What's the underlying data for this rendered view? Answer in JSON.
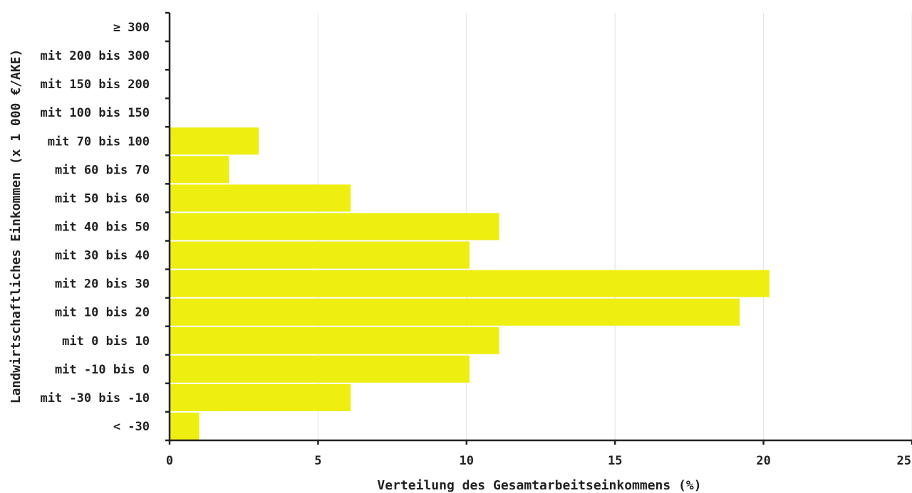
{
  "chart_data": {
    "type": "bar",
    "orientation": "horizontal",
    "categories": [
      "≥ 300",
      "mit 200 bis 300",
      "mit 150 bis 200",
      "mit 100 bis 150",
      "mit 70 bis 100",
      "mit 60 bis 70",
      "mit 50 bis 60",
      "mit 40 bis 50",
      "mit 30 bis 40",
      "mit 20 bis 30",
      "mit 10 bis 20",
      "mit 0 bis 10",
      "mit -10 bis 0",
      "mit -30 bis -10",
      "< -30"
    ],
    "values": [
      0,
      0,
      0,
      0,
      3,
      2,
      6.1,
      11.1,
      10.1,
      20.2,
      19.2,
      11.1,
      10.1,
      6.1,
      1
    ],
    "xlabel": "Verteilung des Gesamtarbeitseinkommens (%)",
    "ylabel": "Landwirtschaftliches Einkommen (x 1 000 €/AKE)",
    "xlim": [
      0,
      25
    ],
    "xticks": [
      "0",
      "5",
      "10",
      "15",
      "20",
      "25"
    ],
    "grid": "vertical",
    "legend": "none",
    "bar_color": "#eeee11"
  }
}
